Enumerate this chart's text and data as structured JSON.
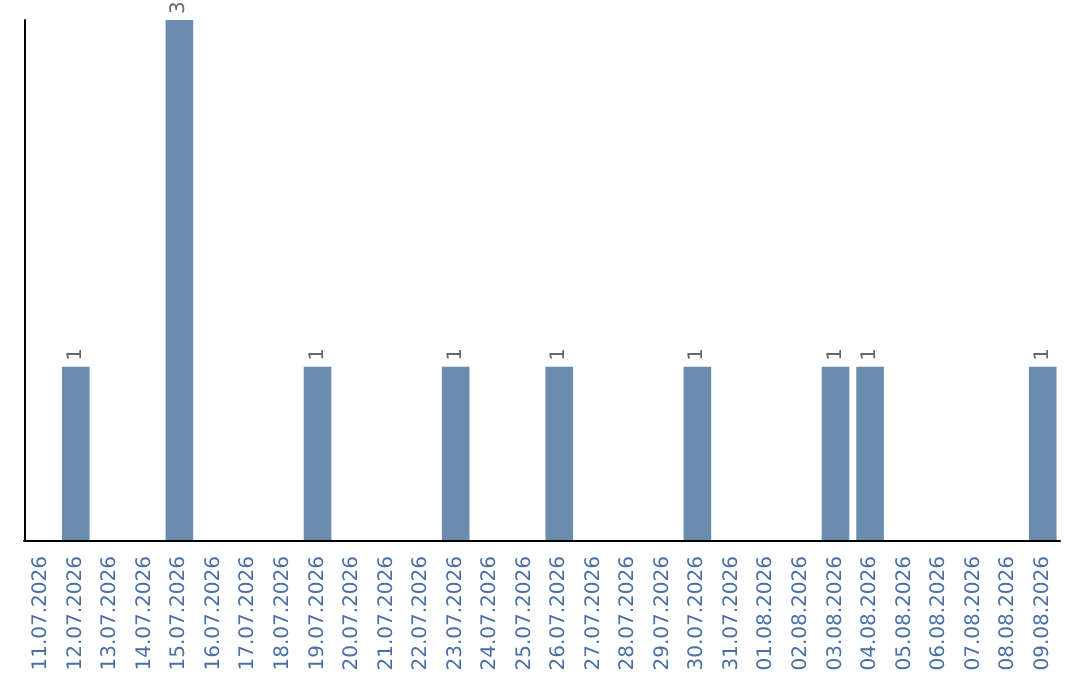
{
  "chart_data": {
    "type": "bar",
    "categories": [
      "11.07.2026",
      "12.07.2026",
      "13.07.2026",
      "14.07.2026",
      "15.07.2026",
      "16.07.2026",
      "17.07.2026",
      "18.07.2026",
      "19.07.2026",
      "20.07.2026",
      "21.07.2026",
      "22.07.2026",
      "23.07.2026",
      "24.07.2026",
      "25.07.2026",
      "26.07.2026",
      "27.07.2026",
      "28.07.2026",
      "29.07.2026",
      "30.07.2026",
      "31.07.2026",
      "01.08.2026",
      "02.08.2026",
      "03.08.2026",
      "04.08.2026",
      "05.08.2026",
      "06.08.2026",
      "07.08.2026",
      "08.08.2026",
      "09.08.2026"
    ],
    "values": [
      0,
      1,
      0,
      0,
      3,
      0,
      0,
      0,
      1,
      0,
      0,
      0,
      1,
      0,
      0,
      1,
      0,
      0,
      0,
      1,
      0,
      0,
      0,
      1,
      1,
      0,
      0,
      0,
      0,
      1
    ],
    "value_labels": [
      null,
      "1",
      null,
      null,
      "3",
      null,
      null,
      null,
      "1",
      null,
      null,
      null,
      "1",
      null,
      null,
      "1",
      null,
      null,
      null,
      "1",
      null,
      null,
      null,
      "1",
      "1",
      null,
      null,
      null,
      null,
      "1"
    ],
    "color": "#6a8cad",
    "tick_labels": "x"
  }
}
